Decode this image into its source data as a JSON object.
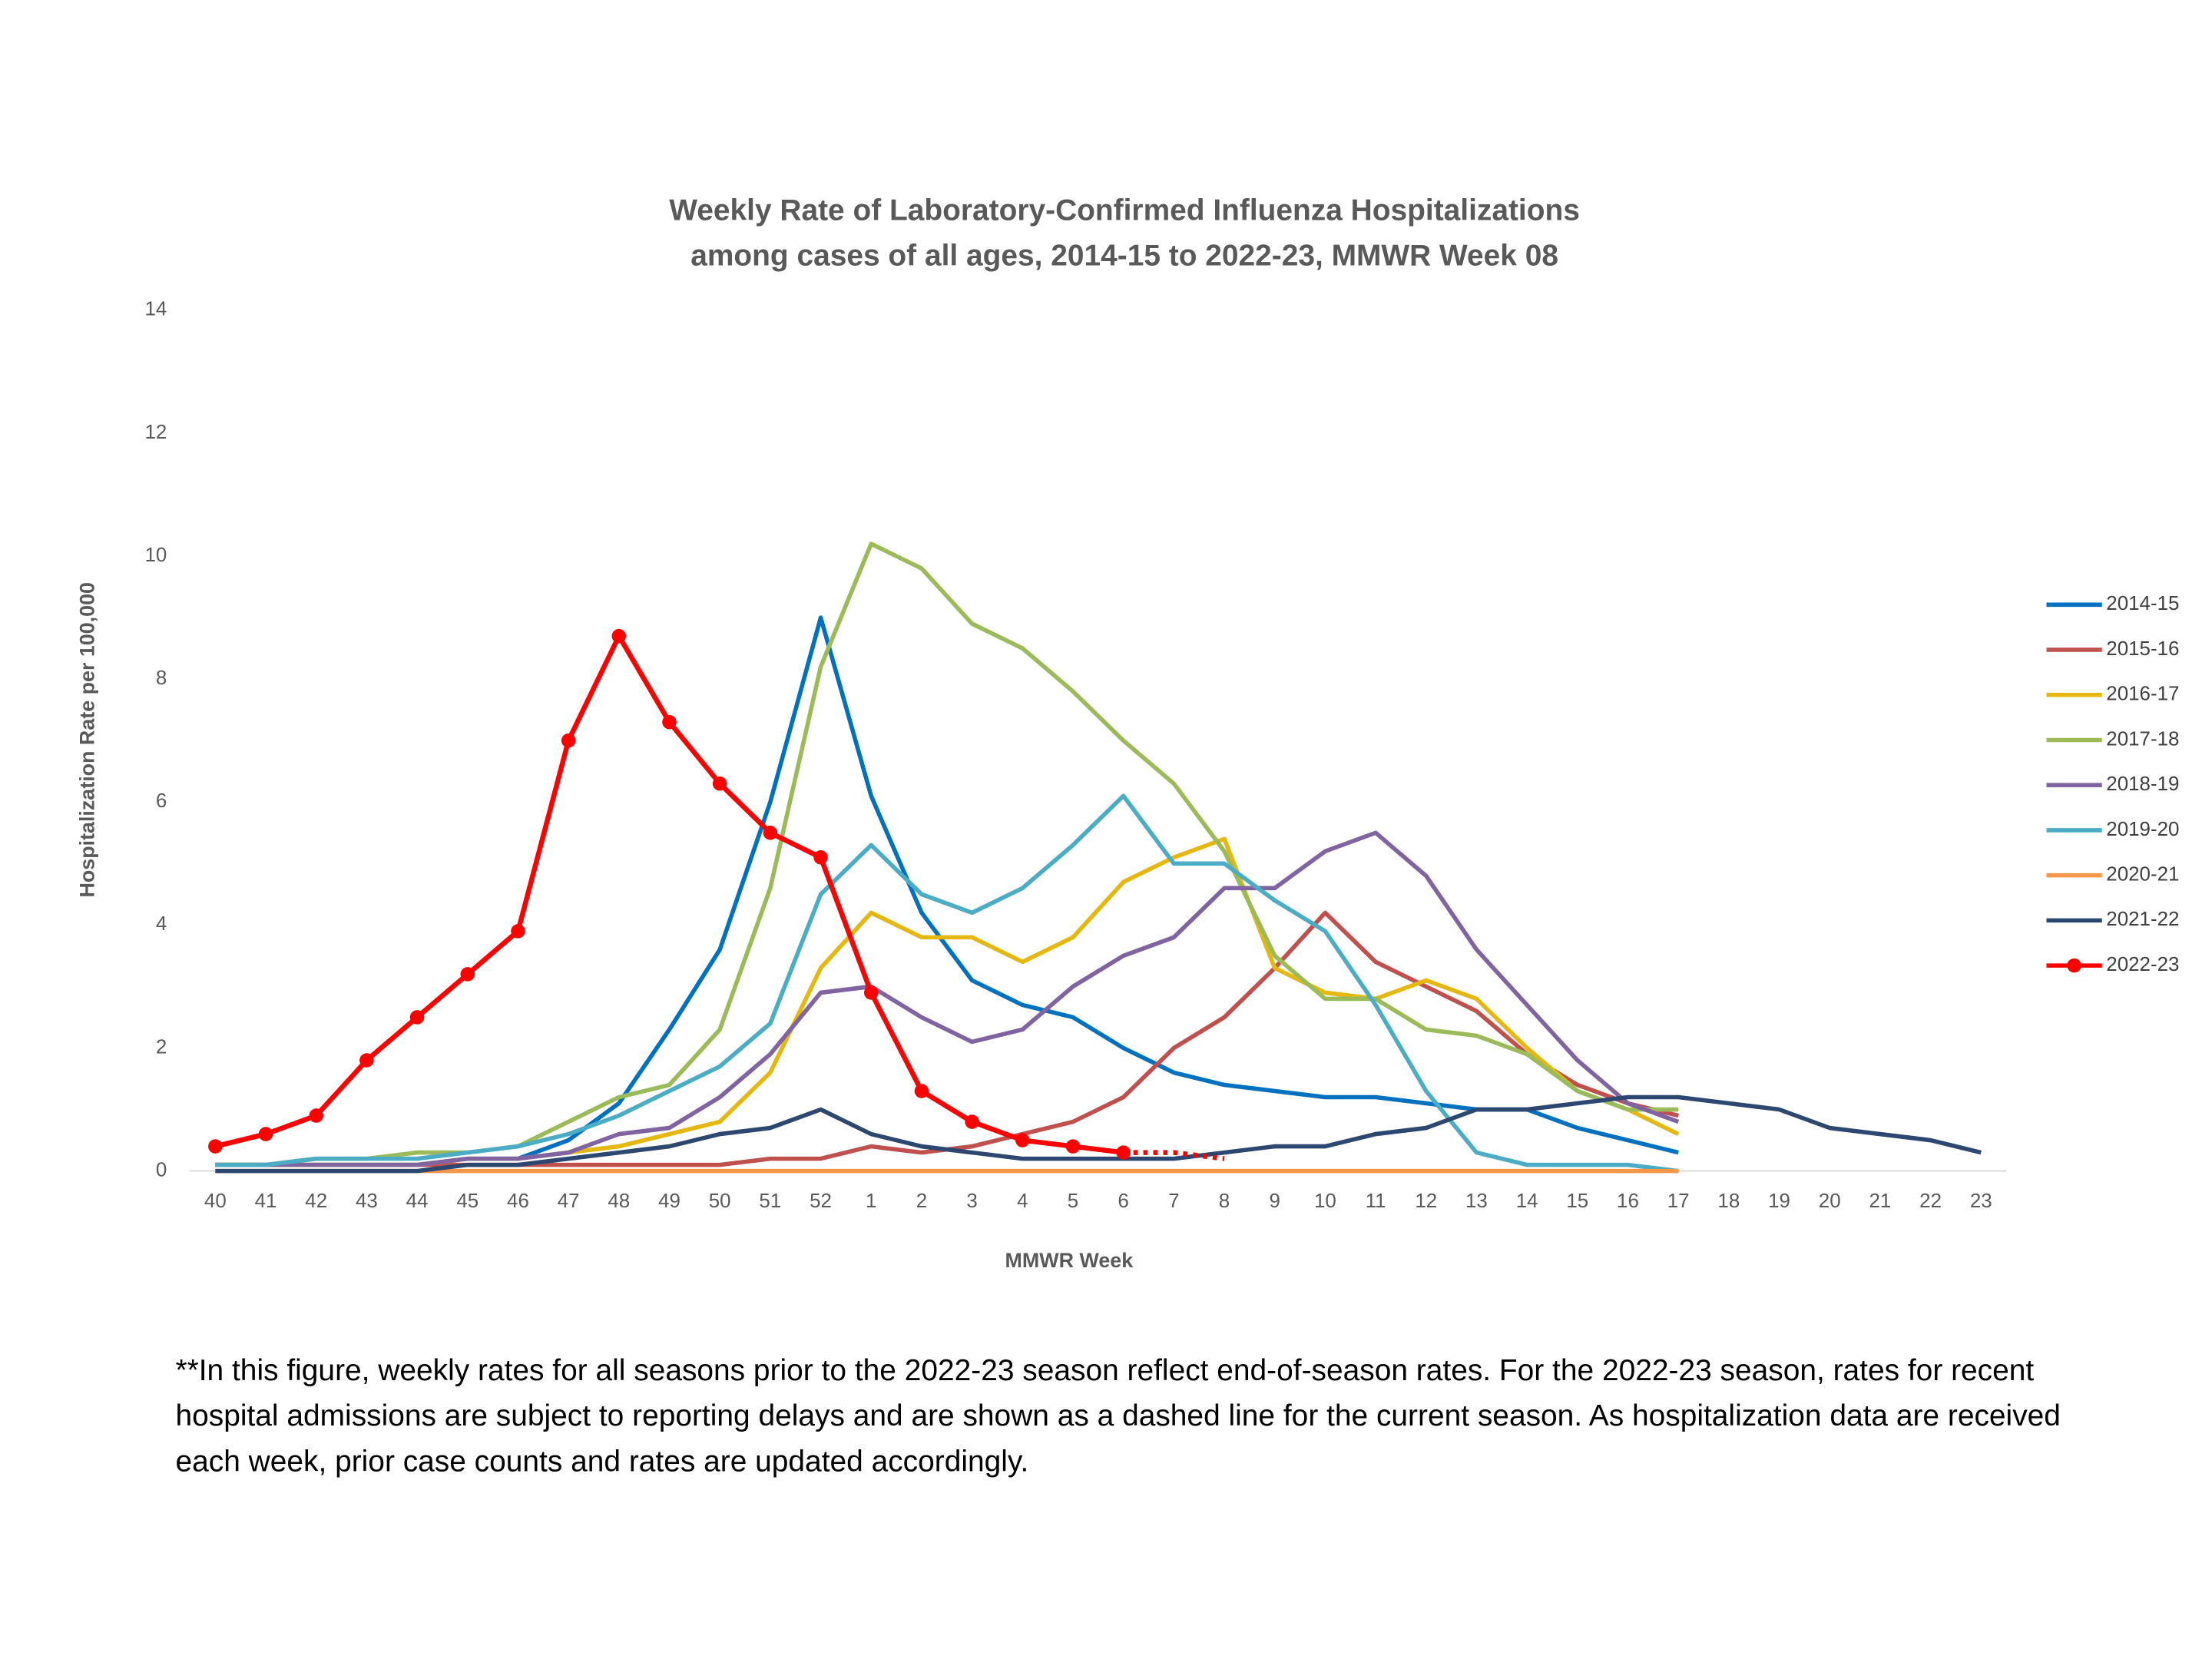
{
  "chart_data": {
    "type": "line",
    "title": [
      "Weekly Rate of Laboratory-Confirmed Influenza Hospitalizations",
      "among cases of all ages, 2014-15 to 2022-23, MMWR Week 08"
    ],
    "y_label": "Hospitalization Rate per 100,000",
    "x_label": "MMWR Week",
    "categories": [
      "40",
      "41",
      "42",
      "43",
      "44",
      "45",
      "46",
      "47",
      "48",
      "49",
      "50",
      "51",
      "52",
      "1",
      "2",
      "3",
      "4",
      "5",
      "6",
      "7",
      "8",
      "9",
      "10",
      "11",
      "12",
      "13",
      "14",
      "15",
      "16",
      "17",
      "18",
      "19",
      "20",
      "21",
      "22",
      "23"
    ],
    "ylim": [
      0,
      14
    ],
    "yticks": [
      0,
      2,
      4,
      6,
      8,
      10,
      12,
      14
    ],
    "grid": false,
    "legend": "right",
    "series": [
      {
        "name": "2014-15",
        "color": "#0070c0",
        "values": [
          0.1,
          0.1,
          0.1,
          0.1,
          0.1,
          0.2,
          0.2,
          0.5,
          1.1,
          2.3,
          3.6,
          6.0,
          9.0,
          6.1,
          4.2,
          3.1,
          2.7,
          2.5,
          2.0,
          1.6,
          1.4,
          1.3,
          1.2,
          1.2,
          1.1,
          1.0,
          1.0,
          0.7,
          0.5,
          0.3,
          null,
          null,
          null,
          null,
          null,
          null
        ]
      },
      {
        "name": "2015-16",
        "color": "#c0504d",
        "values": [
          0.1,
          0.1,
          0.1,
          0.1,
          0.1,
          0.1,
          0.1,
          0.1,
          0.1,
          0.1,
          0.1,
          0.2,
          0.2,
          0.4,
          0.3,
          0.4,
          0.6,
          0.8,
          1.2,
          2.0,
          2.5,
          3.3,
          4.2,
          3.4,
          3.0,
          2.6,
          1.9,
          1.4,
          1.1,
          0.9,
          null,
          null,
          null,
          null,
          null,
          null
        ]
      },
      {
        "name": "2016-17",
        "color": "#e6b80f",
        "values": [
          0.1,
          0.1,
          0.1,
          0.1,
          0.1,
          0.2,
          0.2,
          0.3,
          0.4,
          0.6,
          0.8,
          1.6,
          3.3,
          4.2,
          3.8,
          3.8,
          3.4,
          3.8,
          4.7,
          5.1,
          5.4,
          3.3,
          2.9,
          2.8,
          3.1,
          2.8,
          2.0,
          1.3,
          1.0,
          0.6,
          null,
          null,
          null,
          null,
          null,
          null
        ]
      },
      {
        "name": "2017-18",
        "color": "#9bbb59",
        "values": [
          0.1,
          0.1,
          0.2,
          0.2,
          0.3,
          0.3,
          0.4,
          0.8,
          1.2,
          1.4,
          2.3,
          4.6,
          8.2,
          10.2,
          9.8,
          8.9,
          8.5,
          7.8,
          7.0,
          6.3,
          5.2,
          3.5,
          2.8,
          2.8,
          2.3,
          2.2,
          1.9,
          1.3,
          1.0,
          1.0,
          null,
          null,
          null,
          null,
          null,
          null
        ]
      },
      {
        "name": "2018-19",
        "color": "#8064a2",
        "values": [
          0.1,
          0.1,
          0.1,
          0.1,
          0.1,
          0.2,
          0.2,
          0.3,
          0.6,
          0.7,
          1.2,
          1.9,
          2.9,
          3.0,
          2.5,
          2.1,
          2.3,
          3.0,
          3.5,
          3.8,
          4.6,
          4.6,
          5.2,
          5.5,
          4.8,
          3.6,
          2.7,
          1.8,
          1.1,
          0.8,
          null,
          null,
          null,
          null,
          null,
          null
        ]
      },
      {
        "name": "2019-20",
        "color": "#4bacc6",
        "values": [
          0.1,
          0.1,
          0.2,
          0.2,
          0.2,
          0.3,
          0.4,
          0.6,
          0.9,
          1.3,
          1.7,
          2.4,
          4.5,
          5.3,
          4.5,
          4.2,
          4.6,
          5.3,
          6.1,
          5.0,
          5.0,
          4.4,
          3.9,
          2.7,
          1.3,
          0.3,
          0.1,
          0.1,
          0.1,
          0,
          null,
          null,
          null,
          null,
          null,
          null
        ]
      },
      {
        "name": "2020-21",
        "color": "#f79646",
        "values": [
          0,
          0,
          0,
          0,
          0,
          0,
          0,
          0,
          0,
          0,
          0,
          0,
          0,
          0,
          0,
          0,
          0,
          0,
          0,
          0,
          0,
          0,
          0,
          0,
          0,
          0,
          0,
          0,
          0,
          0,
          null,
          null,
          null,
          null,
          null,
          null
        ]
      },
      {
        "name": "2021-22",
        "color": "#2c4770",
        "values": [
          0,
          0,
          0,
          0,
          0,
          0.1,
          0.1,
          0.2,
          0.3,
          0.4,
          0.6,
          0.7,
          1.0,
          0.6,
          0.4,
          0.3,
          0.2,
          0.2,
          0.2,
          0.2,
          0.3,
          0.4,
          0.4,
          0.6,
          0.7,
          1.0,
          1.0,
          1.1,
          1.2,
          1.2,
          1.1,
          1.0,
          0.7,
          0.6,
          0.5,
          0.3
        ]
      },
      {
        "name": "2022-23",
        "color": "#ff0000",
        "marker": true,
        "dashed_after": "6",
        "values": [
          0.4,
          0.6,
          0.9,
          1.8,
          2.5,
          3.2,
          3.9,
          7.0,
          8.7,
          7.3,
          6.3,
          5.5,
          5.1,
          2.9,
          1.3,
          0.8,
          0.5,
          0.4,
          0.3,
          0.3,
          0.2,
          null,
          null,
          null,
          null,
          null,
          null,
          null,
          null,
          null,
          null,
          null,
          null,
          null,
          null,
          null
        ]
      }
    ],
    "footnote": "**In this figure, weekly rates for all seasons prior to the 2022-23 season reflect end-of-season rates. For the 2022-23 season, rates for recent hospital admissions are subject to reporting delays and are shown as a dashed line for the current season. As hospitalization data are received each week, prior case counts and rates are updated accordingly."
  }
}
